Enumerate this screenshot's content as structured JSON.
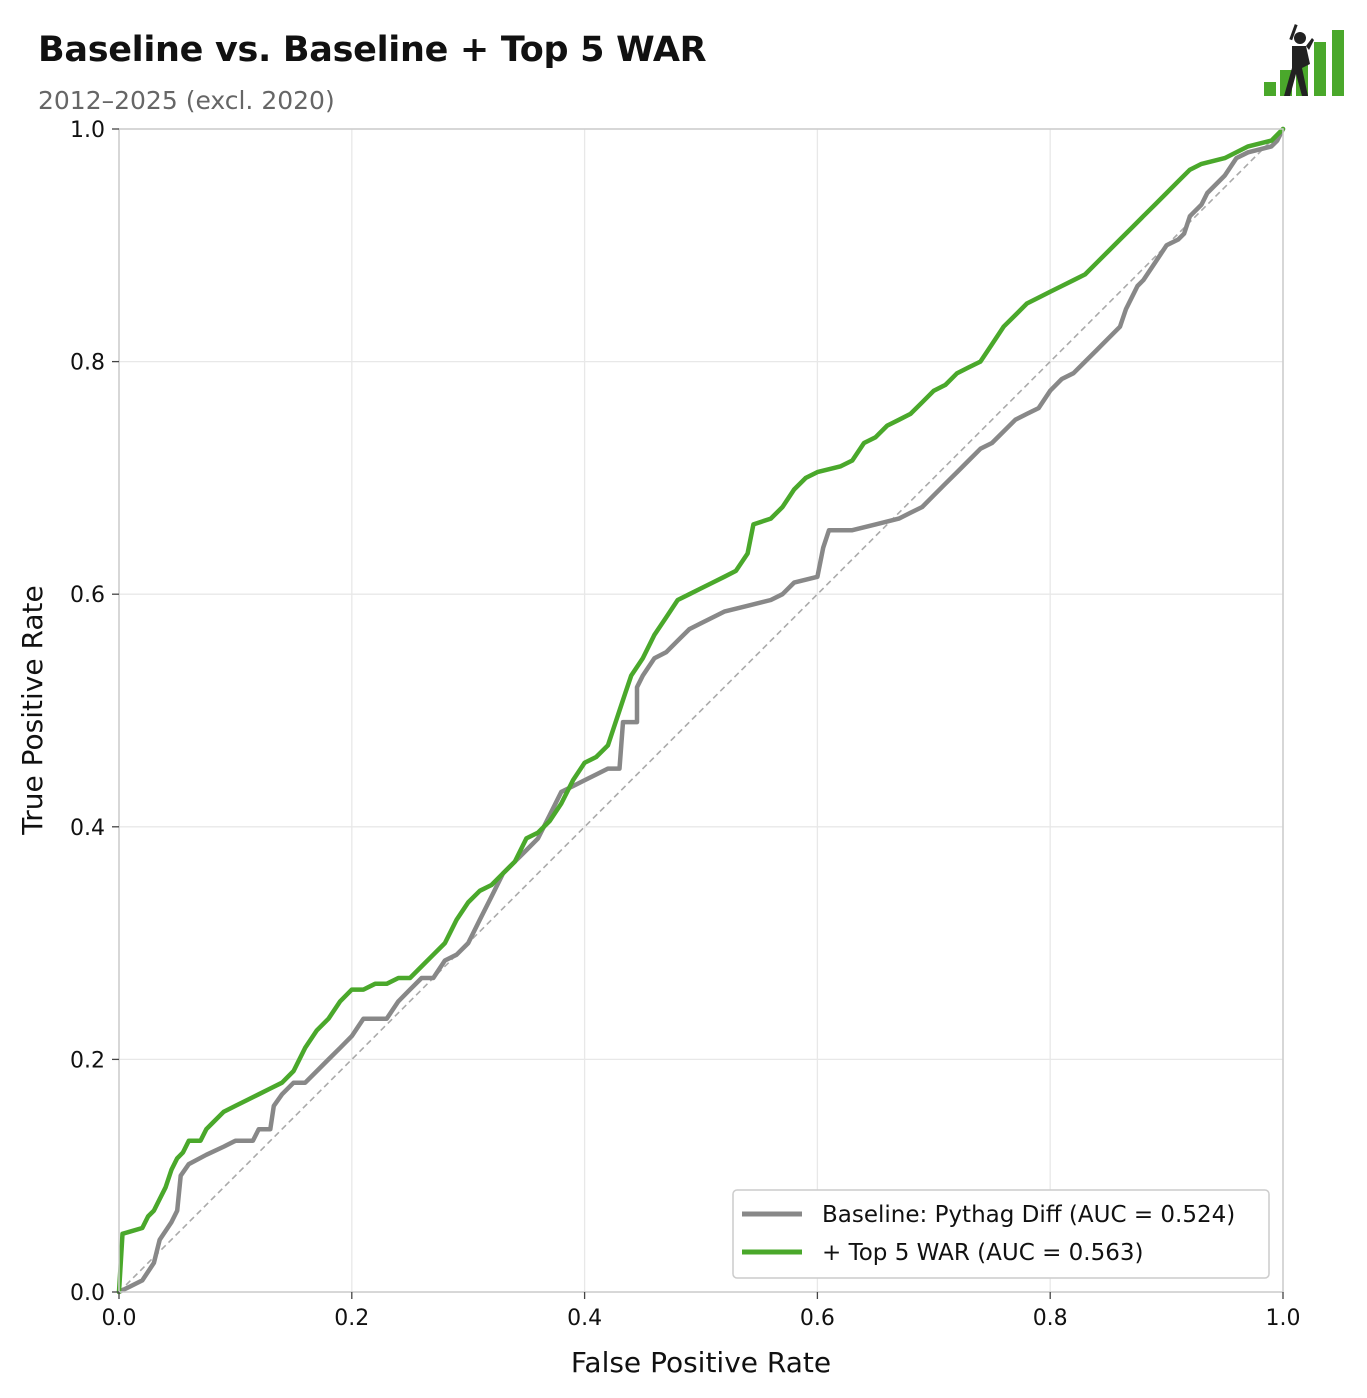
{
  "title": "Baseline vs. Baseline + Top 5 WAR",
  "subtitle": "2012–2025 (excl. 2020)",
  "logo": {
    "icon": "batter-bar-chart-logo",
    "bar_color": "#4aa82b"
  },
  "chart_data": {
    "type": "line",
    "xlabel": "False Positive Rate",
    "ylabel": "True Positive Rate",
    "xlim": [
      0,
      1
    ],
    "ylim": [
      0,
      1
    ],
    "x_ticks": [
      "0.0",
      "0.2",
      "0.4",
      "0.6",
      "0.8",
      "1.0"
    ],
    "y_ticks": [
      "0.0",
      "0.2",
      "0.4",
      "0.6",
      "0.8",
      "1.0"
    ],
    "grid": true,
    "legend_position": "bottom-right",
    "diagonal": {
      "style": "dashed",
      "color": "#aaaaaa",
      "points": [
        [
          0,
          0
        ],
        [
          1,
          1
        ]
      ]
    },
    "series": [
      {
        "name": "Baseline: Pythag Diff (AUC = 0.524)",
        "color": "#888888",
        "points": [
          [
            0,
            0
          ],
          [
            0.01,
            0.005
          ],
          [
            0.02,
            0.01
          ],
          [
            0.03,
            0.025
          ],
          [
            0.035,
            0.045
          ],
          [
            0.045,
            0.06
          ],
          [
            0.05,
            0.07
          ],
          [
            0.053,
            0.1
          ],
          [
            0.06,
            0.11
          ],
          [
            0.075,
            0.118
          ],
          [
            0.09,
            0.125
          ],
          [
            0.1,
            0.13
          ],
          [
            0.115,
            0.13
          ],
          [
            0.12,
            0.14
          ],
          [
            0.13,
            0.14
          ],
          [
            0.133,
            0.16
          ],
          [
            0.14,
            0.17
          ],
          [
            0.15,
            0.18
          ],
          [
            0.16,
            0.18
          ],
          [
            0.17,
            0.19
          ],
          [
            0.18,
            0.2
          ],
          [
            0.19,
            0.21
          ],
          [
            0.2,
            0.22
          ],
          [
            0.21,
            0.235
          ],
          [
            0.22,
            0.235
          ],
          [
            0.23,
            0.235
          ],
          [
            0.24,
            0.25
          ],
          [
            0.25,
            0.26
          ],
          [
            0.26,
            0.27
          ],
          [
            0.27,
            0.27
          ],
          [
            0.28,
            0.285
          ],
          [
            0.29,
            0.29
          ],
          [
            0.3,
            0.3
          ],
          [
            0.31,
            0.32
          ],
          [
            0.32,
            0.34
          ],
          [
            0.33,
            0.36
          ],
          [
            0.34,
            0.37
          ],
          [
            0.35,
            0.38
          ],
          [
            0.36,
            0.39
          ],
          [
            0.37,
            0.41
          ],
          [
            0.38,
            0.43
          ],
          [
            0.39,
            0.435
          ],
          [
            0.4,
            0.44
          ],
          [
            0.41,
            0.445
          ],
          [
            0.42,
            0.45
          ],
          [
            0.43,
            0.45
          ],
          [
            0.433,
            0.49
          ],
          [
            0.445,
            0.49
          ],
          [
            0.445,
            0.52
          ],
          [
            0.45,
            0.53
          ],
          [
            0.46,
            0.545
          ],
          [
            0.47,
            0.55
          ],
          [
            0.48,
            0.56
          ],
          [
            0.49,
            0.57
          ],
          [
            0.5,
            0.575
          ],
          [
            0.52,
            0.585
          ],
          [
            0.54,
            0.59
          ],
          [
            0.56,
            0.595
          ],
          [
            0.57,
            0.6
          ],
          [
            0.58,
            0.61
          ],
          [
            0.6,
            0.615
          ],
          [
            0.605,
            0.64
          ],
          [
            0.61,
            0.655
          ],
          [
            0.63,
            0.655
          ],
          [
            0.65,
            0.66
          ],
          [
            0.67,
            0.665
          ],
          [
            0.68,
            0.67
          ],
          [
            0.69,
            0.675
          ],
          [
            0.7,
            0.685
          ],
          [
            0.71,
            0.695
          ],
          [
            0.72,
            0.705
          ],
          [
            0.73,
            0.715
          ],
          [
            0.74,
            0.725
          ],
          [
            0.75,
            0.73
          ],
          [
            0.77,
            0.75
          ],
          [
            0.78,
            0.755
          ],
          [
            0.79,
            0.76
          ],
          [
            0.8,
            0.775
          ],
          [
            0.81,
            0.785
          ],
          [
            0.82,
            0.79
          ],
          [
            0.83,
            0.8
          ],
          [
            0.84,
            0.81
          ],
          [
            0.85,
            0.82
          ],
          [
            0.86,
            0.83
          ],
          [
            0.865,
            0.845
          ],
          [
            0.87,
            0.855
          ],
          [
            0.875,
            0.865
          ],
          [
            0.88,
            0.87
          ],
          [
            0.89,
            0.885
          ],
          [
            0.9,
            0.9
          ],
          [
            0.91,
            0.905
          ],
          [
            0.915,
            0.91
          ],
          [
            0.92,
            0.925
          ],
          [
            0.93,
            0.935
          ],
          [
            0.935,
            0.945
          ],
          [
            0.95,
            0.96
          ],
          [
            0.96,
            0.975
          ],
          [
            0.97,
            0.98
          ],
          [
            0.99,
            0.985
          ],
          [
            0.995,
            0.99
          ],
          [
            1,
            1
          ]
        ]
      },
      {
        "name": "+ Top 5 WAR (AUC = 0.563)",
        "color": "#4aa82b",
        "points": [
          [
            0,
            0
          ],
          [
            0.003,
            0.05
          ],
          [
            0.02,
            0.055
          ],
          [
            0.025,
            0.065
          ],
          [
            0.03,
            0.07
          ],
          [
            0.035,
            0.08
          ],
          [
            0.04,
            0.09
          ],
          [
            0.045,
            0.105
          ],
          [
            0.05,
            0.115
          ],
          [
            0.055,
            0.12
          ],
          [
            0.06,
            0.13
          ],
          [
            0.07,
            0.13
          ],
          [
            0.075,
            0.14
          ],
          [
            0.08,
            0.145
          ],
          [
            0.09,
            0.155
          ],
          [
            0.1,
            0.16
          ],
          [
            0.11,
            0.165
          ],
          [
            0.12,
            0.17
          ],
          [
            0.13,
            0.175
          ],
          [
            0.14,
            0.18
          ],
          [
            0.15,
            0.19
          ],
          [
            0.155,
            0.2
          ],
          [
            0.16,
            0.21
          ],
          [
            0.17,
            0.225
          ],
          [
            0.18,
            0.235
          ],
          [
            0.19,
            0.25
          ],
          [
            0.2,
            0.26
          ],
          [
            0.21,
            0.26
          ],
          [
            0.22,
            0.265
          ],
          [
            0.23,
            0.265
          ],
          [
            0.24,
            0.27
          ],
          [
            0.25,
            0.27
          ],
          [
            0.26,
            0.28
          ],
          [
            0.27,
            0.29
          ],
          [
            0.28,
            0.3
          ],
          [
            0.29,
            0.32
          ],
          [
            0.3,
            0.335
          ],
          [
            0.31,
            0.345
          ],
          [
            0.32,
            0.35
          ],
          [
            0.33,
            0.36
          ],
          [
            0.34,
            0.37
          ],
          [
            0.35,
            0.39
          ],
          [
            0.36,
            0.395
          ],
          [
            0.37,
            0.405
          ],
          [
            0.38,
            0.42
          ],
          [
            0.39,
            0.44
          ],
          [
            0.4,
            0.455
          ],
          [
            0.41,
            0.46
          ],
          [
            0.42,
            0.47
          ],
          [
            0.425,
            0.485
          ],
          [
            0.43,
            0.5
          ],
          [
            0.435,
            0.515
          ],
          [
            0.44,
            0.53
          ],
          [
            0.45,
            0.545
          ],
          [
            0.46,
            0.565
          ],
          [
            0.47,
            0.58
          ],
          [
            0.48,
            0.595
          ],
          [
            0.49,
            0.6
          ],
          [
            0.5,
            0.605
          ],
          [
            0.51,
            0.61
          ],
          [
            0.52,
            0.615
          ],
          [
            0.53,
            0.62
          ],
          [
            0.54,
            0.635
          ],
          [
            0.545,
            0.66
          ],
          [
            0.56,
            0.665
          ],
          [
            0.57,
            0.675
          ],
          [
            0.58,
            0.69
          ],
          [
            0.59,
            0.7
          ],
          [
            0.6,
            0.705
          ],
          [
            0.62,
            0.71
          ],
          [
            0.63,
            0.715
          ],
          [
            0.64,
            0.73
          ],
          [
            0.65,
            0.735
          ],
          [
            0.66,
            0.745
          ],
          [
            0.67,
            0.75
          ],
          [
            0.68,
            0.755
          ],
          [
            0.69,
            0.765
          ],
          [
            0.7,
            0.775
          ],
          [
            0.71,
            0.78
          ],
          [
            0.72,
            0.79
          ],
          [
            0.73,
            0.795
          ],
          [
            0.74,
            0.8
          ],
          [
            0.75,
            0.815
          ],
          [
            0.76,
            0.83
          ],
          [
            0.77,
            0.84
          ],
          [
            0.78,
            0.85
          ],
          [
            0.79,
            0.855
          ],
          [
            0.8,
            0.86
          ],
          [
            0.81,
            0.865
          ],
          [
            0.82,
            0.87
          ],
          [
            0.83,
            0.875
          ],
          [
            0.84,
            0.885
          ],
          [
            0.85,
            0.895
          ],
          [
            0.86,
            0.905
          ],
          [
            0.87,
            0.915
          ],
          [
            0.88,
            0.925
          ],
          [
            0.89,
            0.935
          ],
          [
            0.9,
            0.945
          ],
          [
            0.91,
            0.955
          ],
          [
            0.92,
            0.965
          ],
          [
            0.93,
            0.97
          ],
          [
            0.95,
            0.975
          ],
          [
            0.97,
            0.985
          ],
          [
            0.99,
            0.99
          ],
          [
            1,
            1
          ]
        ]
      }
    ]
  }
}
